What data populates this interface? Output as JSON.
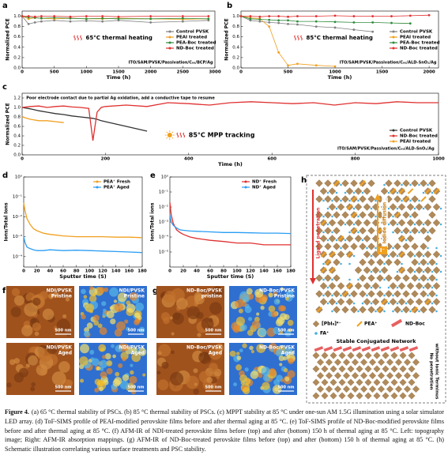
{
  "chart_data": [
    {
      "panel": "a",
      "type": "line",
      "xlabel": "Time (h)",
      "ylabel": "Normalized PCE",
      "markers": true,
      "legend": "center right",
      "x": [
        0,
        100,
        200,
        300,
        500,
        750,
        1000,
        1250,
        1500,
        2000,
        2500,
        2900
      ],
      "xlim": [
        0,
        3000
      ],
      "xticks": [
        0,
        500,
        1000,
        1500,
        2000,
        2500,
        3000
      ],
      "ylim": [
        0,
        1.1
      ],
      "yticks": [
        {
          "value": 0,
          "label": "0.0"
        },
        0.2,
        0.4,
        0.6,
        0.8,
        {
          "value": 1,
          "label": "1.0"
        }
      ],
      "series": [
        {
          "name": "Control PVSK",
          "color": "#808080",
          "values": [
            1,
            0.85,
            0.88,
            0.9,
            0.92,
            0.9,
            0.91,
            0.9,
            0.92,
            0.88,
            0.9,
            0.92
          ]
        },
        {
          "name": "PEAI treated",
          "color": "#f0a020",
          "values": [
            1,
            0.95,
            0.97,
            0.96,
            0.95,
            0.96,
            0.95,
            0.95,
            0.96,
            0.95,
            0.94,
            0.95
          ]
        },
        {
          "name": "PEA-Boc treated",
          "color": "#2e8b3a",
          "values": [
            1,
            0.98,
            0.97,
            0.96,
            0.97,
            0.96,
            0.95,
            0.96,
            0.95,
            0.95,
            0.96,
            0.95
          ]
        },
        {
          "name": "ND-Boc treated",
          "color": "#e03030",
          "values": [
            1,
            1.0,
            0.99,
            1.0,
            1.0,
            0.99,
            1.0,
            1.0,
            0.99,
            1.0,
            1.0,
            1.0
          ]
        }
      ],
      "annotations": [
        "65°C thermal heating",
        "ITO/SAM/PVSK/Passivation/C₆₀/BCP/Ag"
      ]
    },
    {
      "panel": "b",
      "type": "line",
      "xlabel": "Time (h)",
      "ylabel": "Normalized PCE",
      "markers": true,
      "legend": "center right",
      "x": [
        0,
        100,
        200,
        300,
        400,
        500,
        600,
        800,
        1000,
        1200,
        1400,
        1600,
        1800,
        2000
      ],
      "xlim": [
        0,
        2100
      ],
      "xticks": [
        0,
        500,
        1000,
        1500,
        2000
      ],
      "ylim": [
        0,
        1.1
      ],
      "yticks": [
        {
          "value": 0,
          "label": "0.0"
        },
        0.2,
        0.4,
        0.6,
        0.8,
        {
          "value": 1,
          "label": "1.0"
        }
      ],
      "series": [
        {
          "name": "Control PVSK",
          "color": "#808080",
          "values": [
            1,
            0.92,
            0.9,
            0.88,
            0.87,
            0.85,
            0.84,
            0.8,
            0.78,
            0.74,
            0.7,
            null,
            null,
            null
          ]
        },
        {
          "name": "PEAI treated",
          "color": "#f0a020",
          "values": [
            1,
            0.97,
            0.95,
            0.8,
            0.3,
            0.05,
            0.08,
            0.05,
            0.03,
            null,
            null,
            null,
            null,
            null
          ]
        },
        {
          "name": "PEA-Boc treated",
          "color": "#2e8b3a",
          "values": [
            1,
            0.95,
            0.94,
            0.93,
            0.92,
            0.92,
            0.9,
            0.9,
            0.89,
            0.88,
            0.88,
            0.87,
            0.86,
            null
          ]
        },
        {
          "name": "ND-Boc treated",
          "color": "#e03030",
          "values": [
            1,
            1.0,
            0.99,
            1.0,
            1.0,
            0.99,
            1.0,
            1.0,
            1.01,
            1.0,
            1.0,
            1.0,
            1.01,
            1.02
          ]
        }
      ],
      "annotations": [
        "85°C thermal heating",
        "ITO/SAM/PVSK/Passivation/C₆₀/ALD-SnO₂/Ag"
      ]
    },
    {
      "panel": "c",
      "type": "line",
      "xlabel": "Time (h)",
      "ylabel": "Normalized PCE",
      "markers": false,
      "legend": "lower right",
      "x": [
        0,
        20,
        40,
        60,
        80,
        100,
        120,
        140,
        160,
        170,
        175,
        180,
        190,
        200,
        250,
        300,
        350,
        400,
        450,
        500,
        550,
        600,
        650,
        700,
        750,
        800,
        850,
        900,
        950,
        1000
      ],
      "xlim": [
        0,
        1000
      ],
      "xticks": [
        0,
        200,
        400,
        600,
        800,
        1000
      ],
      "ylim": [
        0,
        1.3
      ],
      "yticks": [
        {
          "value": 0,
          "label": "0.0"
        },
        0.2,
        0.4,
        0.6,
        0.8,
        {
          "value": 1,
          "label": "1.0"
        },
        1.2
      ],
      "series": [
        {
          "name": "Control PVSK",
          "color": "#333333",
          "values": [
            1,
            0.97,
            0.93,
            0.9,
            0.87,
            0.85,
            0.82,
            0.8,
            0.78,
            0.77,
            0.76,
            0.75,
            0.72,
            0.7,
            0.6,
            0.5,
            null,
            null,
            null,
            null,
            null,
            null,
            null,
            null,
            null,
            null,
            null,
            null,
            null,
            null
          ]
        },
        {
          "name": "ND-Boc treated",
          "color": "#e03030",
          "values": [
            1,
            1.02,
            1.03,
            1.0,
            1.02,
            1.03,
            1.01,
            1.0,
            0.98,
            0.3,
            0.6,
            0.9,
            1.0,
            1.02,
            1.05,
            1.02,
            1.1,
            1.08,
            1.05,
            1.1,
            1.12,
            1.1,
            1.08,
            1.1,
            1.05,
            1.1,
            1.08,
            1.12,
            1.1,
            1.1
          ]
        },
        {
          "name": "PEAI treated",
          "color": "#f0a020",
          "values": [
            0.8,
            0.75,
            0.72,
            0.72,
            0.7,
            0.68,
            null,
            null,
            null,
            null,
            null,
            null,
            null,
            null,
            null,
            null,
            null,
            null,
            null,
            null,
            null,
            null,
            null,
            null,
            null,
            null,
            null,
            null,
            null,
            null
          ]
        }
      ],
      "annotations": [
        "Poor electrode contact due to partial Ag oxidation, add a conductive tape to resume",
        "85°C MPP tracking",
        "ITO/SAM/PVSK/Passivation/C₆₀/ALD-SnO₂/Ag"
      ]
    },
    {
      "panel": "d",
      "type": "line",
      "xlabel": "Sputter time (S)",
      "ylabel": "Ions/Total Ions",
      "markers": false,
      "legend": "upper right",
      "log": true,
      "x": [
        0,
        2,
        5,
        10,
        15,
        20,
        30,
        40,
        60,
        80,
        100,
        120,
        140,
        160,
        180
      ],
      "xlim": [
        0,
        180
      ],
      "xticks": [
        0,
        20,
        40,
        60,
        80,
        100,
        120,
        140,
        160,
        180
      ],
      "ylim": [
        3e-05,
        1
      ],
      "yticks": [
        {
          "value": 1,
          "label": "10⁰"
        },
        {
          "value": 0.1,
          "label": "10⁻¹"
        },
        {
          "value": 0.01,
          "label": "10⁻²"
        },
        {
          "value": 0.001,
          "label": "10⁻³"
        },
        {
          "value": 0.0001,
          "label": "10⁻⁴"
        }
      ],
      "series": [
        {
          "name": "PEA⁺ Fresh",
          "color": "#f0a020",
          "values": [
            0.05,
            0.02,
            0.008,
            0.004,
            0.0025,
            0.002,
            0.0015,
            0.0013,
            0.0011,
            0.001,
            0.001,
            0.001,
            0.00095,
            0.00095,
            0.0009
          ]
        },
        {
          "name": "PEA⁺ Aged",
          "color": "#2a9df4",
          "values": [
            0.001,
            0.0005,
            0.0003,
            0.00025,
            0.00022,
            0.0002,
            0.0002,
            0.00022,
            0.0002,
            0.00021,
            0.0002,
            0.00019,
            0.00018,
            0.00017,
            0.00016
          ]
        }
      ],
      "annotations": []
    },
    {
      "panel": "e",
      "type": "line",
      "xlabel": "Sputter time (S)",
      "ylabel": "Ions/Total ions",
      "markers": false,
      "legend": "upper right",
      "log": true,
      "x": [
        0,
        2,
        5,
        10,
        15,
        20,
        30,
        40,
        60,
        80,
        100,
        120,
        140,
        160,
        180
      ],
      "xlim": [
        0,
        180
      ],
      "xticks": [
        0,
        20,
        40,
        60,
        80,
        100,
        120,
        140,
        160,
        180
      ],
      "ylim": [
        1e-06,
        1
      ],
      "yticks": [
        {
          "value": 1,
          "label": "10⁰"
        },
        {
          "value": 0.1,
          "label": "10⁻¹"
        },
        {
          "value": 0.01,
          "label": "10⁻²"
        },
        {
          "value": 0.001,
          "label": "10⁻³"
        },
        {
          "value": 0.0001,
          "label": "10⁻⁴"
        },
        {
          "value": 1e-05,
          "label": "10⁻⁵"
        }
      ],
      "series": [
        {
          "name": "ND⁺ Fresh",
          "color": "#e03030",
          "values": [
            0.02,
            0.003,
            0.0008,
            0.0003,
            0.0002,
            0.00015,
            0.0001,
            8e-05,
            6e-05,
            5e-05,
            4e-05,
            4e-05,
            3e-05,
            3e-05,
            3e-05
          ]
        },
        {
          "name": "ND⁺ Aged",
          "color": "#2a9df4",
          "values": [
            0.003,
            0.001,
            0.0006,
            0.0004,
            0.0003,
            0.00028,
            0.00025,
            0.00024,
            0.00022,
            0.0002,
            0.0002,
            0.00019,
            0.00018,
            0.00018,
            0.00017
          ]
        }
      ],
      "annotations": []
    }
  ],
  "afm": [
    {
      "panel": "f",
      "images": [
        {
          "label": [
            "NDI/PVSK",
            "Pristine"
          ],
          "scale": "500 nm"
        },
        {
          "label": [
            "NDI/PVSK",
            "Pristine"
          ],
          "scale": "500 nm"
        },
        {
          "label": [
            "NDI/PVSK",
            "Aged"
          ],
          "scale": "500 nm"
        },
        {
          "label": [
            "NDI/PVSK",
            "Aged"
          ],
          "scale": "500 nm"
        }
      ]
    },
    {
      "panel": "g",
      "images": [
        {
          "label": [
            "ND-Boc/PVSK",
            "pristine"
          ],
          "scale": "500 nm"
        },
        {
          "label": [
            "ND-Boc/PVSK",
            "Pristine"
          ],
          "scale": "500 nm"
        },
        {
          "label": [
            "ND-Boc/PVSK",
            "Aged"
          ],
          "scale": "500 nm"
        },
        {
          "label": [
            "ND-Boc/PVSK",
            "Aged"
          ],
          "scale": "500 nm"
        }
      ]
    }
  ],
  "schematic": {
    "panel": "h",
    "ligand": "Ligand penetration",
    "iodide": "Iodide diffusion",
    "ion": "I⁻",
    "legend": [
      "[PbI₆]⁴⁻",
      "PEA⁺",
      "FA⁺",
      "ND-Boc"
    ],
    "network": "Stable Conjugated Network",
    "no_penetration": [
      "No penetration",
      "without Ionic Terminus"
    ]
  },
  "caption": {
    "label": "Figure 4.",
    "text": "(a) 65 °C thermal stability of PSCs. (b) 85 °C thermal stability of PSCs. (c) MPPT stability at 85 °C under one-sun AM 1.5G illumination using a solar simulator LED array. (d) ToF-SIMS profile of PEAI-modified perovskite films before and after thermal aging at 85 °C. (e) ToF-SIMS profile of ND-Boc-modified perovskite films before and after thermal aging at 85 °C. (f) AFM-IR of NDI-treated perovskite films before (top) and after (bottom) 150 h of thermal aging at 85 °C. Left: topography image; Right: AFM-IR absorption mappings. (g) AFM-IR of ND-Boc-treated perovskite films before (top) and after (bottom) 150 h of thermal aging at 85 °C. (h) Schematic illustration correlating various surface treatments and PSC stability."
  }
}
